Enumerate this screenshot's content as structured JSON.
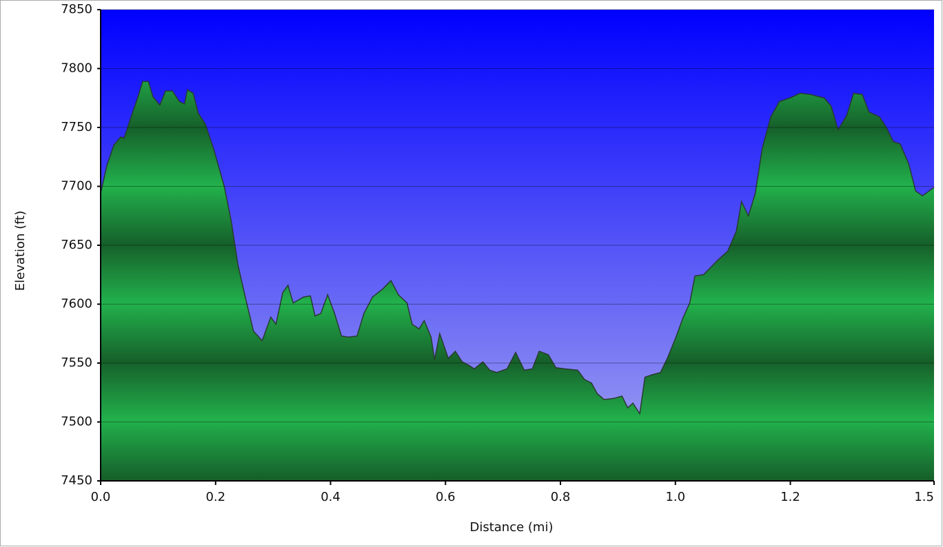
{
  "chart_data": {
    "type": "area",
    "x_label": "Distance   (mi)",
    "y_label": "Elevation (ft)",
    "color": "#22b14c",
    "dark_color": "#16602a",
    "line_color": "#2a3a30",
    "background_top": "#0000ff",
    "background_bottom": "#a8a8f0",
    "grid": true,
    "xlim": [
      0,
      1.45
    ],
    "xticks": [
      {
        "value": 0,
        "label": "0.0"
      },
      0.2,
      0.4,
      0.6,
      0.8,
      {
        "value": 1,
        "label": "1.0"
      },
      1.2,
      {
        "value": 1.45,
        "label": "1.5"
      }
    ],
    "ylim": [
      7450,
      7850
    ],
    "yticks": [
      7450,
      7500,
      7550,
      7600,
      7650,
      7700,
      7750,
      7800,
      7850
    ],
    "x": [
      0,
      0.011,
      0.023,
      0.035,
      0.041,
      0.053,
      0.065,
      0.073,
      0.083,
      0.091,
      0.103,
      0.113,
      0.125,
      0.137,
      0.146,
      0.151,
      0.161,
      0.17,
      0.182,
      0.197,
      0.215,
      0.227,
      0.239,
      0.254,
      0.266,
      0.281,
      0.296,
      0.305,
      0.317,
      0.326,
      0.335,
      0.353,
      0.365,
      0.373,
      0.383,
      0.395,
      0.407,
      0.419,
      0.431,
      0.446,
      0.458,
      0.473,
      0.491,
      0.505,
      0.518,
      0.533,
      0.542,
      0.554,
      0.563,
      0.575,
      0.581,
      0.59,
      0.605,
      0.617,
      0.629,
      0.641,
      0.65,
      0.665,
      0.677,
      0.689,
      0.707,
      0.722,
      0.737,
      0.751,
      0.763,
      0.779,
      0.792,
      0.809,
      0.83,
      0.842,
      0.854,
      0.864,
      0.876,
      0.893,
      0.907,
      0.917,
      0.926,
      0.938,
      0.947,
      0.959,
      0.974,
      0.986,
      1.001,
      1.013,
      1.025,
      1.034,
      1.049,
      1.061,
      1.073,
      1.091,
      1.106,
      1.115,
      1.127,
      1.139,
      1.151,
      1.166,
      1.181,
      1.199,
      1.217,
      1.235,
      1.259,
      1.271,
      1.283,
      1.298,
      1.31,
      1.325,
      1.337,
      1.355,
      1.367,
      1.379,
      1.391,
      1.406,
      1.418,
      1.43,
      1.45
    ],
    "values": [
      7694,
      7718,
      7735,
      7742,
      7741,
      7759,
      7776,
      7789,
      7789,
      7776,
      7769,
      7781,
      7781,
      7772,
      7770,
      7782,
      7779,
      7762,
      7753,
      7731,
      7700,
      7671,
      7633,
      7601,
      7577,
      7569,
      7589,
      7583,
      7610,
      7616,
      7601,
      7606,
      7607,
      7590,
      7592,
      7608,
      7592,
      7573,
      7572,
      7573,
      7592,
      7606,
      7613,
      7620,
      7608,
      7601,
      7583,
      7579,
      7586,
      7572,
      7553,
      7575,
      7554,
      7560,
      7551,
      7548,
      7545,
      7551,
      7544,
      7542,
      7545,
      7559,
      7544,
      7545,
      7560,
      7557,
      7546,
      7545,
      7544,
      7536,
      7533,
      7524,
      7519,
      7520,
      7522,
      7512,
      7516,
      7507,
      7538,
      7540,
      7542,
      7554,
      7572,
      7588,
      7601,
      7624,
      7625,
      7631,
      7637,
      7645,
      7662,
      7687,
      7675,
      7694,
      7732,
      7759,
      7772,
      7775,
      7779,
      7778,
      7775,
      7768,
      7748,
      7760,
      7779,
      7778,
      7763,
      7759,
      7750,
      7738,
      7736,
      7719,
      7696,
      7692,
      7699
    ]
  }
}
